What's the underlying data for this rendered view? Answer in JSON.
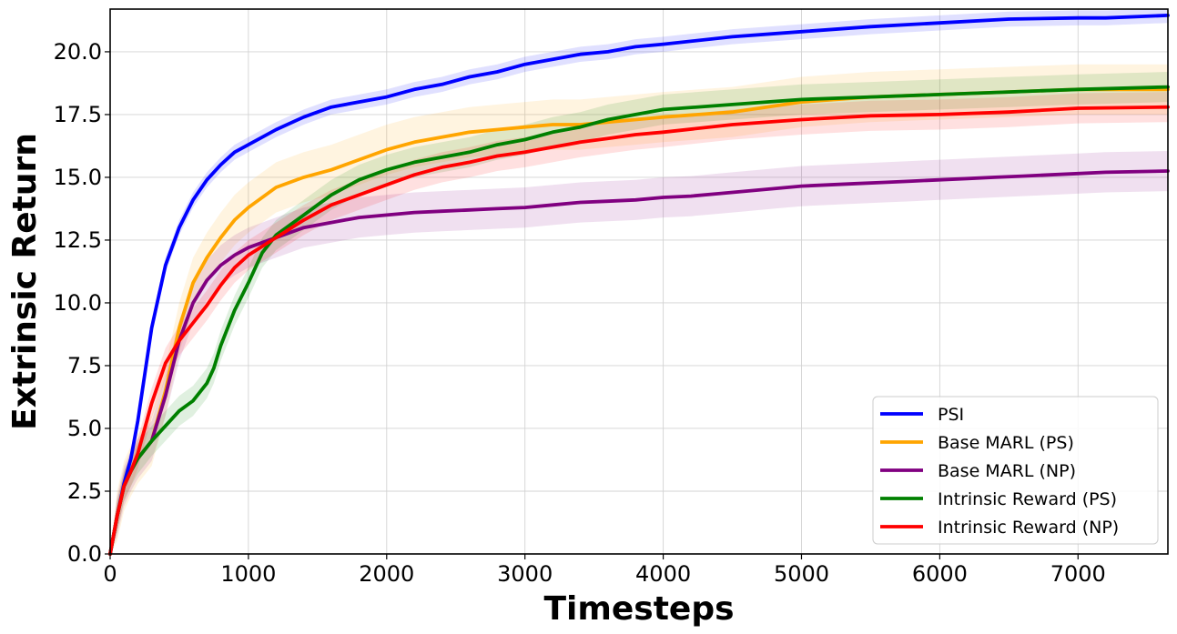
{
  "chart_data": {
    "type": "line",
    "xlabel": "Timesteps",
    "ylabel": "Extrinsic Return",
    "xlim": [
      0,
      7650
    ],
    "ylim": [
      0,
      21.7
    ],
    "xticks": [
      0,
      1000,
      2000,
      3000,
      4000,
      5000,
      6000,
      7000
    ],
    "yticks": [
      0.0,
      2.5,
      5.0,
      7.5,
      10.0,
      12.5,
      15.0,
      17.5,
      20.0
    ],
    "ytick_labels": [
      "0.0",
      "2.5",
      "5.0",
      "7.5",
      "10.0",
      "12.5",
      "15.0",
      "17.5",
      "20.0"
    ],
    "grid": true,
    "legend_position": "lower-right",
    "series": [
      {
        "name": "PSI",
        "color": "#0000ff",
        "x": [
          0,
          50,
          100,
          150,
          200,
          300,
          400,
          500,
          600,
          700,
          800,
          900,
          1000,
          1200,
          1400,
          1600,
          1800,
          2000,
          2200,
          2400,
          2600,
          2800,
          3000,
          3200,
          3400,
          3600,
          3800,
          4000,
          4500,
          5000,
          5500,
          6000,
          6500,
          7000,
          7200,
          7650
        ],
        "y": [
          0,
          1.5,
          2.8,
          3.8,
          5.3,
          9.0,
          11.5,
          13.0,
          14.1,
          14.9,
          15.5,
          16.0,
          16.3,
          16.9,
          17.4,
          17.8,
          18.0,
          18.2,
          18.5,
          18.7,
          19.0,
          19.2,
          19.5,
          19.7,
          19.9,
          20.0,
          20.2,
          20.3,
          20.6,
          20.8,
          21.0,
          21.15,
          21.3,
          21.35,
          21.35,
          21.45
        ],
        "band": 0.3
      },
      {
        "name": "Base MARL (PS)",
        "color": "#ffa500",
        "x": [
          0,
          50,
          100,
          150,
          200,
          300,
          400,
          500,
          600,
          700,
          800,
          900,
          1000,
          1200,
          1400,
          1600,
          1800,
          2000,
          2200,
          2400,
          2600,
          2800,
          3000,
          3200,
          3400,
          3600,
          3800,
          4000,
          4500,
          5000,
          5500,
          6000,
          6500,
          7000,
          7650
        ],
        "y": [
          0,
          1.5,
          2.7,
          3.3,
          3.8,
          4.5,
          6.5,
          9.0,
          10.8,
          11.8,
          12.6,
          13.3,
          13.8,
          14.6,
          15.0,
          15.3,
          15.7,
          16.1,
          16.4,
          16.6,
          16.8,
          16.9,
          17.0,
          17.1,
          17.1,
          17.2,
          17.3,
          17.4,
          17.6,
          18.0,
          18.2,
          18.3,
          18.4,
          18.5,
          18.5
        ],
        "band": 1.0
      },
      {
        "name": "Base MARL (NP)",
        "color": "#800080",
        "x": [
          0,
          50,
          100,
          150,
          200,
          300,
          400,
          500,
          600,
          700,
          800,
          900,
          1000,
          1200,
          1400,
          1600,
          1800,
          2000,
          2200,
          2400,
          2600,
          2800,
          3000,
          3200,
          3400,
          3600,
          3800,
          4000,
          4200,
          4400,
          4600,
          4800,
          5000,
          5200,
          5400,
          5600,
          5800,
          6000,
          6200,
          6400,
          6600,
          6800,
          7000,
          7200,
          7650
        ],
        "y": [
          0,
          1.5,
          2.7,
          3.3,
          3.8,
          4.5,
          6.3,
          8.5,
          10.0,
          10.9,
          11.5,
          11.9,
          12.2,
          12.6,
          13.0,
          13.2,
          13.4,
          13.5,
          13.6,
          13.65,
          13.7,
          13.75,
          13.8,
          13.9,
          14.0,
          14.05,
          14.1,
          14.2,
          14.25,
          14.35,
          14.45,
          14.55,
          14.65,
          14.7,
          14.75,
          14.8,
          14.85,
          14.9,
          14.95,
          15.0,
          15.05,
          15.1,
          15.15,
          15.2,
          15.25
        ],
        "band": 0.8
      },
      {
        "name": "Intrinsic Reward (PS)",
        "color": "#008000",
        "x": [
          0,
          50,
          100,
          150,
          200,
          300,
          400,
          500,
          600,
          700,
          750,
          800,
          900,
          1000,
          1100,
          1200,
          1300,
          1400,
          1500,
          1600,
          1700,
          1800,
          2000,
          2200,
          2400,
          2600,
          2800,
          3000,
          3200,
          3400,
          3600,
          3800,
          4000,
          4500,
          5000,
          5500,
          6000,
          6500,
          7000,
          7650
        ],
        "y": [
          0,
          1.5,
          2.7,
          3.3,
          3.8,
          4.5,
          5.1,
          5.7,
          6.1,
          6.8,
          7.4,
          8.3,
          9.7,
          10.8,
          12.0,
          12.7,
          13.1,
          13.5,
          13.9,
          14.3,
          14.6,
          14.9,
          15.3,
          15.6,
          15.8,
          16.0,
          16.3,
          16.5,
          16.8,
          17.0,
          17.3,
          17.5,
          17.7,
          17.9,
          18.1,
          18.2,
          18.3,
          18.4,
          18.5,
          18.6
        ],
        "band": 0.6
      },
      {
        "name": "Intrinsic Reward (NP)",
        "color": "#ff0000",
        "x": [
          0,
          50,
          100,
          150,
          200,
          300,
          400,
          500,
          600,
          700,
          800,
          900,
          1000,
          1200,
          1400,
          1600,
          1800,
          2000,
          2200,
          2400,
          2600,
          2800,
          3000,
          3200,
          3400,
          3600,
          3800,
          4000,
          4500,
          5000,
          5500,
          6000,
          6500,
          7000,
          7650
        ],
        "y": [
          0,
          1.5,
          2.7,
          3.3,
          4.0,
          6.0,
          7.6,
          8.5,
          9.2,
          9.9,
          10.7,
          11.4,
          11.9,
          12.6,
          13.3,
          13.9,
          14.3,
          14.7,
          15.1,
          15.4,
          15.6,
          15.85,
          16.0,
          16.2,
          16.4,
          16.55,
          16.7,
          16.8,
          17.1,
          17.3,
          17.45,
          17.5,
          17.6,
          17.75,
          17.8
        ],
        "band": 0.6
      }
    ]
  }
}
